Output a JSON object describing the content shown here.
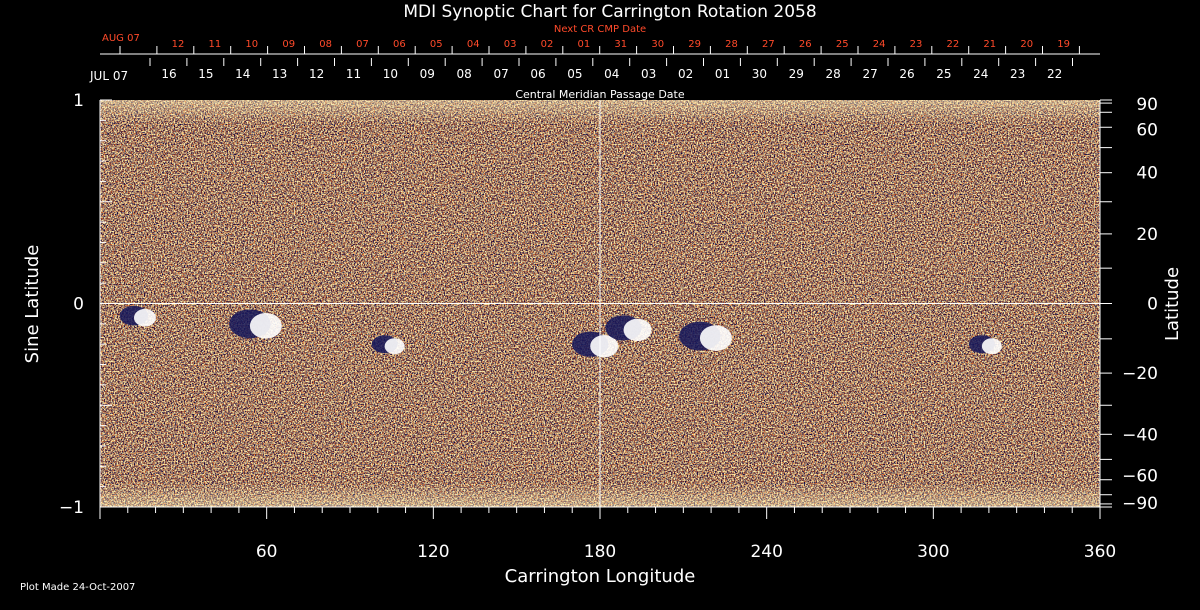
{
  "chart_data": {
    "type": "heatmap",
    "title": "MDI Synoptic Chart for Carrington Rotation 2058",
    "xlabel": "Carrington Longitude",
    "ylabel_left": "Sine Latitude",
    "ylabel_right": "Latitude",
    "xlim": [
      0,
      360
    ],
    "ylim": [
      -1,
      1
    ],
    "x_ticks": [
      "60",
      "120",
      "180",
      "240",
      "300",
      "360"
    ],
    "x_tick_values": [
      60,
      120,
      180,
      240,
      300,
      360
    ],
    "y_ticks_left": [
      "1",
      "0",
      "−1"
    ],
    "y_tick_values_left": [
      1,
      0,
      -1
    ],
    "y_ticks_right": [
      "90",
      "60",
      "40",
      "20",
      "0",
      "−20",
      "−40",
      "−60",
      "−90"
    ],
    "y_tick_values_right": [
      90,
      60,
      40,
      20,
      0,
      -20,
      -40,
      -60,
      -90
    ],
    "top_axis_1": {
      "label": "Next CR CMP Date",
      "color": "#ff4a2a",
      "start_label": "AUG 07",
      "dates": [
        "12",
        "11",
        "10",
        "09",
        "08",
        "07",
        "06",
        "05",
        "04",
        "03",
        "02",
        "01",
        "31",
        "30",
        "29",
        "28",
        "27",
        "26",
        "25",
        "24",
        "23",
        "22",
        "21",
        "20",
        "19"
      ]
    },
    "top_axis_2": {
      "label": "Central Meridian Passage Date",
      "start_label": "JUL 07",
      "dates": [
        "16",
        "15",
        "14",
        "13",
        "12",
        "11",
        "10",
        "09",
        "08",
        "07",
        "06",
        "05",
        "04",
        "03",
        "02",
        "01",
        "30",
        "29",
        "28",
        "27",
        "26",
        "25",
        "24",
        "23",
        "22"
      ]
    },
    "active_regions": [
      {
        "lon": 15,
        "sinlat": -0.06,
        "strength": 0.5
      },
      {
        "lon": 58,
        "sinlat": -0.1,
        "strength": 1.0
      },
      {
        "lon": 105,
        "sinlat": -0.2,
        "strength": 0.4
      },
      {
        "lon": 180,
        "sinlat": -0.2,
        "strength": 0.8
      },
      {
        "lon": 192,
        "sinlat": -0.12,
        "strength": 0.8
      },
      {
        "lon": 220,
        "sinlat": -0.16,
        "strength": 1.0
      },
      {
        "lon": 320,
        "sinlat": -0.2,
        "strength": 0.4
      }
    ],
    "grid": true,
    "colors": {
      "background": "#e8661c",
      "positive": "#ffffff",
      "negative": "#14165a",
      "text": "#ffffff",
      "accent": "#ff4a2a"
    }
  },
  "footer": {
    "plot_made": "Plot Made 24-Oct-2007"
  }
}
